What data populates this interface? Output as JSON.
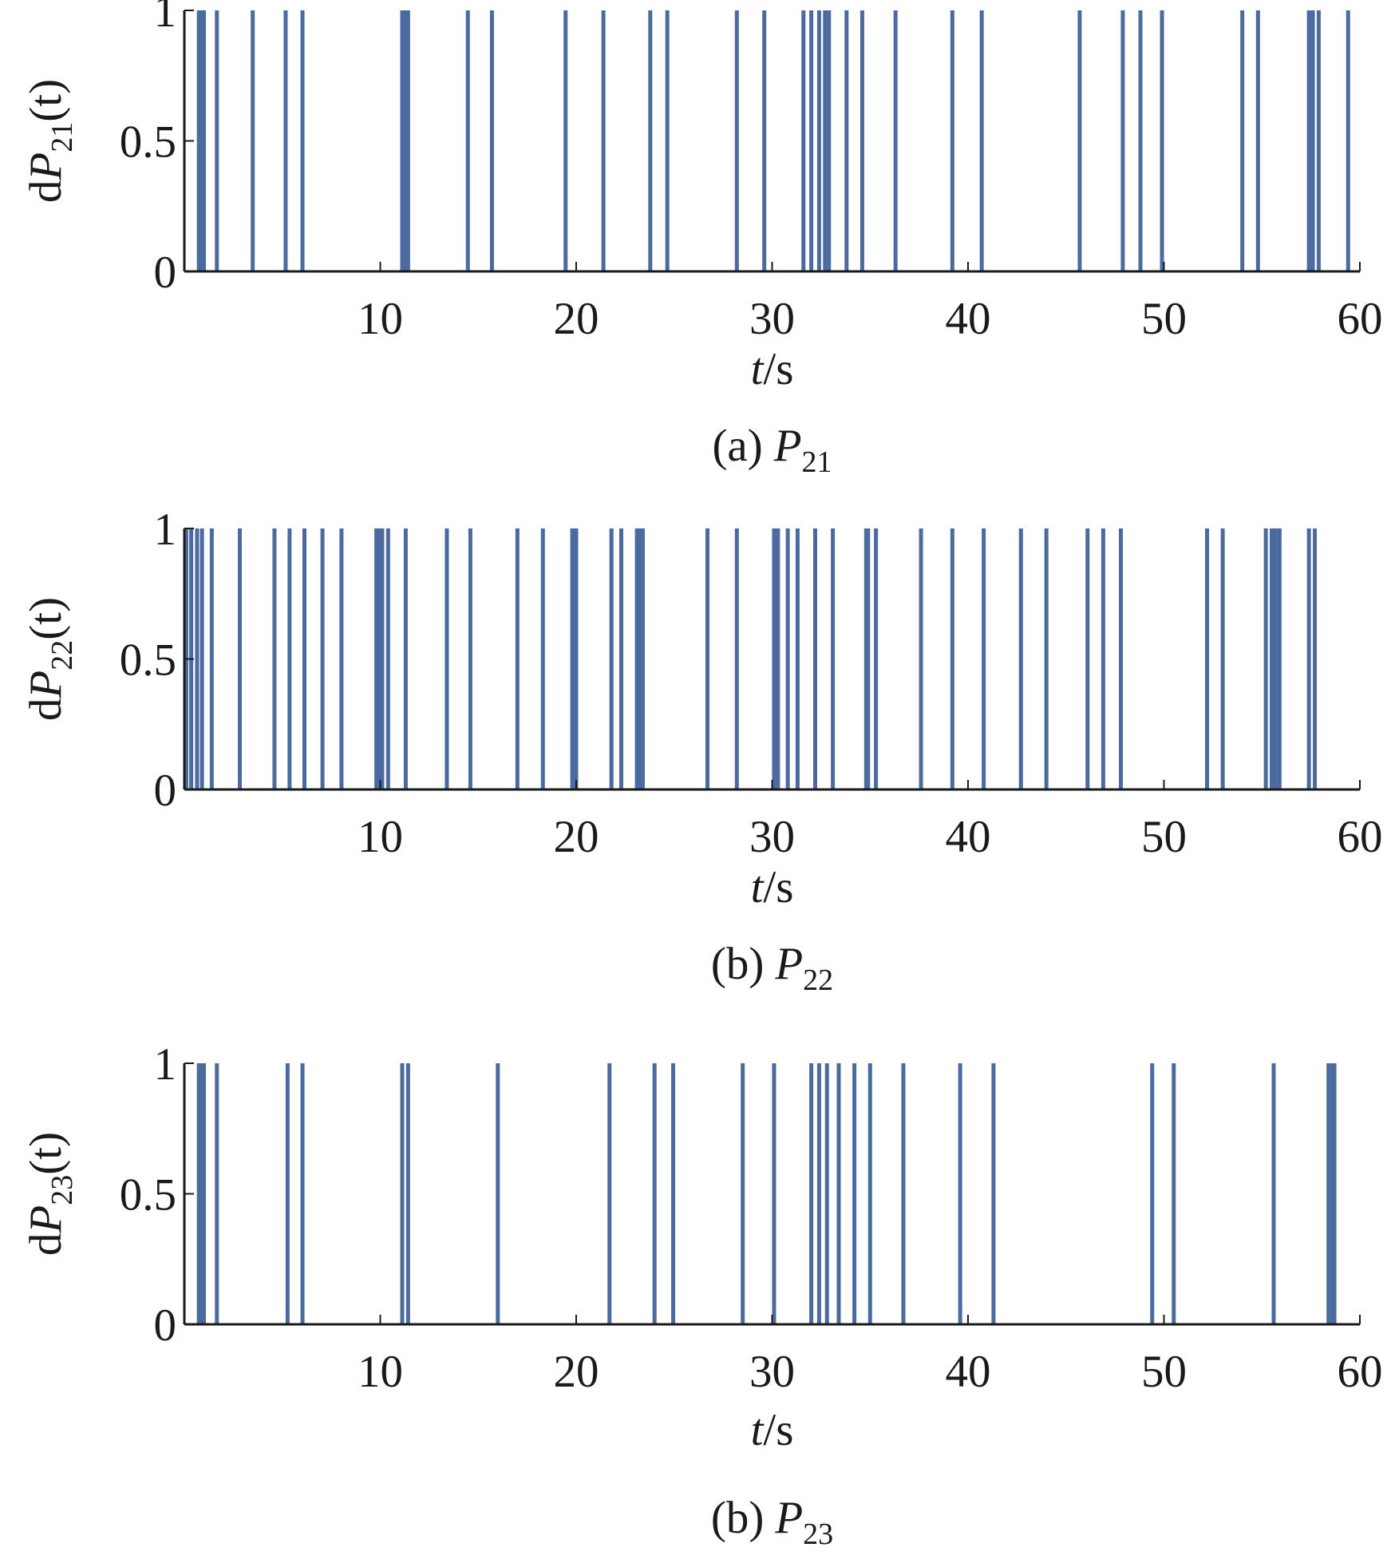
{
  "chart_data": [
    {
      "type": "bar",
      "color": "#4a6aa0",
      "ylabel": [
        "d",
        "P",
        "21",
        "(t)"
      ],
      "xlabel": [
        "t",
        "/s"
      ],
      "caption": [
        "(a)",
        "P",
        "21"
      ],
      "xlim": [
        0,
        60
      ],
      "xticks": [
        10,
        20,
        30,
        40,
        50,
        60
      ],
      "ylim": [
        0,
        1
      ],
      "yticks": [
        0,
        0.5,
        1
      ],
      "x": [
        0.74,
        0.9,
        1.0,
        1.66,
        3.49,
        5.17,
        6.03,
        11.12,
        11.27,
        11.42,
        14.47,
        15.7,
        19.46,
        21.39,
        23.78,
        24.65,
        28.2,
        29.6,
        31.6,
        32.0,
        32.4,
        32.7,
        32.9,
        33.8,
        34.6,
        36.3,
        39.2,
        40.7,
        45.7,
        47.9,
        48.8,
        49.9,
        54.0,
        54.8,
        57.4,
        57.6,
        57.9,
        59.4
      ],
      "values": [
        1,
        1,
        1,
        1,
        1,
        1,
        1,
        1,
        1,
        1,
        1,
        1,
        1,
        1,
        1,
        1,
        1,
        1,
        1,
        1,
        1,
        1,
        1,
        1,
        1,
        1,
        1,
        1,
        1,
        1,
        1,
        1,
        1,
        1,
        1,
        1,
        1,
        1
      ]
    },
    {
      "type": "bar",
      "color": "#4a6aa0",
      "ylabel": [
        "d",
        "P",
        "22",
        "(t)"
      ],
      "xlabel": [
        "t",
        "/s"
      ],
      "caption": [
        "(b)",
        "P",
        "22"
      ],
      "xlim": [
        0,
        60
      ],
      "xticks": [
        10,
        20,
        30,
        40,
        50,
        60
      ],
      "ylim": [
        0,
        1
      ],
      "yticks": [
        0,
        0.5,
        1
      ],
      "x": [
        0.1,
        0.35,
        0.65,
        0.9,
        1.4,
        2.83,
        4.6,
        5.37,
        6.13,
        7.05,
        8.02,
        9.8,
        9.95,
        10.1,
        10.4,
        11.3,
        13.4,
        14.6,
        17.0,
        18.3,
        19.8,
        20.0,
        21.8,
        22.3,
        23.1,
        23.3,
        23.4,
        26.7,
        28.2,
        30.1,
        30.3,
        30.8,
        31.3,
        32.2,
        33.1,
        34.8,
        34.9,
        35.3,
        37.6,
        39.2,
        40.8,
        42.7,
        44.0,
        46.1,
        46.9,
        47.8,
        52.2,
        53.0,
        55.2,
        55.5,
        55.7,
        55.9,
        57.4,
        57.7
      ],
      "values": [
        1,
        1,
        1,
        1,
        1,
        1,
        1,
        1,
        1,
        1,
        1,
        1,
        1,
        1,
        1,
        1,
        1,
        1,
        1,
        1,
        1,
        1,
        1,
        1,
        1,
        1,
        1,
        1,
        1,
        1,
        1,
        1,
        1,
        1,
        1,
        1,
        1,
        1,
        1,
        1,
        1,
        1,
        1,
        1,
        1,
        1,
        1,
        1,
        1,
        1,
        1,
        1,
        1,
        1
      ]
    },
    {
      "type": "bar",
      "color": "#4a6aa0",
      "ylabel": [
        "d",
        "P",
        "23",
        "(t)"
      ],
      "xlabel": [
        "t",
        "/s"
      ],
      "caption": [
        "(b)",
        "P",
        "23"
      ],
      "xlim": [
        0,
        60
      ],
      "xticks": [
        10,
        20,
        30,
        40,
        50,
        60
      ],
      "ylim": [
        0,
        1
      ],
      "yticks": [
        0,
        0.5,
        1
      ],
      "x": [
        0.74,
        0.9,
        1.0,
        1.66,
        5.27,
        6.03,
        11.12,
        11.42,
        16.0,
        21.7,
        24.0,
        24.95,
        28.5,
        30.1,
        32.0,
        32.4,
        32.8,
        33.4,
        34.2,
        35.0,
        36.7,
        39.6,
        41.3,
        49.4,
        50.5,
        55.6,
        58.4,
        58.6,
        58.7
      ],
      "values": [
        1,
        1,
        1,
        1,
        1,
        1,
        1,
        1,
        1,
        1,
        1,
        1,
        1,
        1,
        1,
        1,
        1,
        1,
        1,
        1,
        1,
        1,
        1,
        1,
        1,
        1,
        1,
        1,
        1
      ]
    }
  ]
}
